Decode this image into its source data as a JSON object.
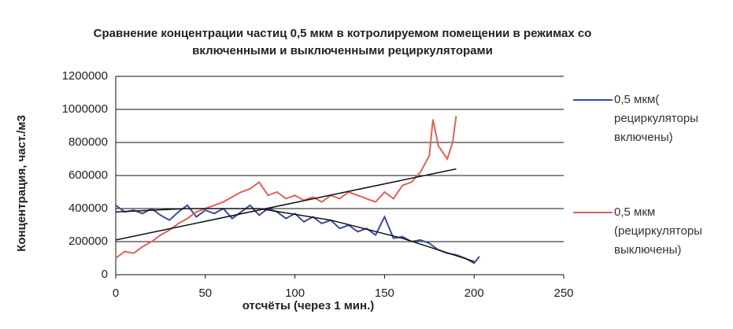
{
  "chart_data": {
    "type": "line",
    "title": "Сравнение концентрации частиц  0,5 мкм в котролируемом помещении в режимах со включенными и выключенными рециркуляторами",
    "x_label": "отсчёты (через 1 мин.)",
    "y_label": "Концентрация, част./м3",
    "xlim": [
      0,
      250
    ],
    "xticks": [
      0,
      50,
      100,
      150,
      200,
      250
    ],
    "ylim": [
      0,
      1200000
    ],
    "yticks": [
      0,
      200000,
      400000,
      600000,
      800000,
      1000000,
      1200000
    ],
    "grid": true,
    "legend": "right",
    "series": [
      {
        "name": "0,5 мкм( рециркуляторы включены)",
        "color": "#3b4a9a",
        "x": [
          0,
          5,
          10,
          15,
          20,
          25,
          30,
          35,
          40,
          45,
          50,
          55,
          60,
          65,
          70,
          75,
          80,
          85,
          90,
          95,
          100,
          105,
          110,
          115,
          120,
          125,
          130,
          135,
          140,
          145,
          150,
          155,
          160,
          165,
          170,
          175,
          180,
          185,
          190,
          195,
          200,
          203
        ],
        "values": [
          420000,
          380000,
          390000,
          370000,
          400000,
          360000,
          330000,
          380000,
          420000,
          350000,
          390000,
          370000,
          400000,
          340000,
          380000,
          420000,
          360000,
          400000,
          380000,
          340000,
          370000,
          320000,
          350000,
          310000,
          330000,
          280000,
          300000,
          260000,
          280000,
          240000,
          350000,
          220000,
          230000,
          200000,
          210000,
          190000,
          150000,
          130000,
          120000,
          100000,
          70000,
          110000
        ]
      },
      {
        "name": "0,5 мкм (рециркуляторы выключены)",
        "color": "#e0605a",
        "x": [
          0,
          5,
          10,
          15,
          20,
          25,
          30,
          35,
          40,
          45,
          50,
          55,
          60,
          65,
          70,
          75,
          80,
          85,
          90,
          95,
          100,
          105,
          110,
          115,
          120,
          125,
          130,
          135,
          140,
          145,
          150,
          155,
          160,
          165,
          170,
          175,
          177,
          180,
          185,
          188,
          190
        ],
        "values": [
          100000,
          140000,
          130000,
          170000,
          200000,
          240000,
          270000,
          310000,
          340000,
          380000,
          400000,
          420000,
          440000,
          470000,
          500000,
          520000,
          560000,
          480000,
          500000,
          460000,
          480000,
          450000,
          470000,
          440000,
          480000,
          460000,
          500000,
          480000,
          460000,
          440000,
          500000,
          460000,
          540000,
          560000,
          620000,
          720000,
          940000,
          780000,
          700000,
          800000,
          960000
        ]
      }
    ],
    "trendlines": [
      {
        "color": "#111111",
        "x": [
          0,
          190
        ],
        "values": [
          210000,
          640000
        ]
      },
      {
        "color": "#111111",
        "x": [
          0,
          40,
          80,
          120,
          160,
          200
        ],
        "values": [
          380000,
          400000,
          400000,
          330000,
          220000,
          80000
        ]
      }
    ]
  }
}
